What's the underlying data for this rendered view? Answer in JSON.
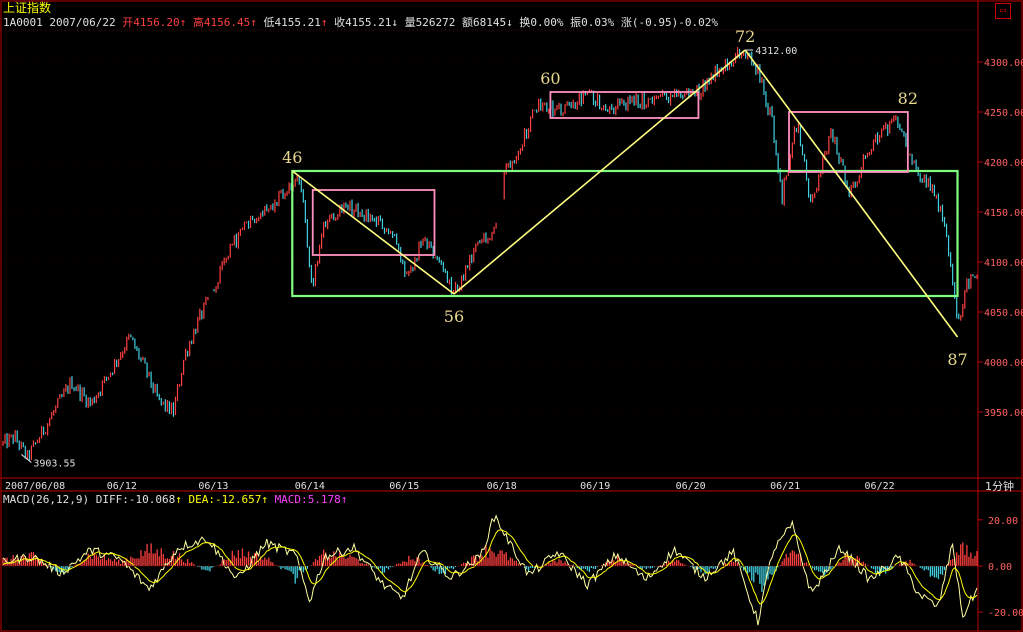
{
  "header": {
    "title": "上证指数",
    "code": "1A0001",
    "date": "2007/06/22",
    "open_label": "开",
    "open": "4156.20",
    "high_label": "高",
    "high": "4156.45",
    "low_label": "低",
    "low": "4155.21",
    "close_label": "收",
    "close": "4155.21",
    "volume_label": "量",
    "volume": "526272",
    "amount_label": "额",
    "amount": "68145",
    "turnover_label": "换",
    "turnover": "0.00%",
    "amplitude_label": "振",
    "amplitude": "0.03%",
    "change_label": "涨",
    "change": "(-0.95)-0.02%",
    "up_arrow": "↑",
    "down_arrow": "↓"
  },
  "period_label": "1分钟",
  "macd_header": {
    "name": "MACD(26,12,9)",
    "diff_label": "DIFF:",
    "diff": "-10.068",
    "dea_label": "DEA:",
    "dea": "-12.657",
    "macd_label": "MACD:",
    "macd": "5.178"
  },
  "colors": {
    "background": "#000000",
    "frame": "#c00000",
    "up": "#ff4040",
    "down": "#40d0e0",
    "label_white": "#e0e0e0",
    "wave_label": "#e8d890",
    "trend_line": "#ffff80",
    "green_box": "#80ff80",
    "pink_box": "#ff90c0",
    "diff_line": "#ffffa0",
    "dea_line": "#ffff00",
    "macd_label": "#ff40ff",
    "axis_text": "#ff6060"
  },
  "chart_data": [
    {
      "type": "candlestick",
      "title": "上证指数 1分钟",
      "x_date_labels": [
        "2007/06/08",
        "06/12",
        "06/13",
        "06/14",
        "06/15",
        "06/18",
        "06/19",
        "06/20",
        "06/21",
        "06/22"
      ],
      "y_ticks": [
        3950,
        4000,
        4050,
        4100,
        4150,
        4200,
        4250,
        4300
      ],
      "ylim": [
        3885,
        4328
      ],
      "annotations": [
        {
          "text": "3903.55",
          "kind": "low_marker",
          "x": 0.025,
          "y": 3903.55
        },
        {
          "text": "4312.00",
          "kind": "high_marker",
          "x": 0.762,
          "y": 4312.0
        },
        {
          "text": "46",
          "kind": "wave_point",
          "x": 0.297,
          "y": 4191
        },
        {
          "text": "56",
          "kind": "wave_point",
          "x": 0.463,
          "y": 4068
        },
        {
          "text": "60",
          "kind": "wave_point",
          "x": 0.562,
          "y": 4270
        },
        {
          "text": "72",
          "kind": "wave_point",
          "x": 0.762,
          "y": 4312
        },
        {
          "text": "82",
          "kind": "wave_point",
          "x": 0.929,
          "y": 4250
        },
        {
          "text": "87",
          "kind": "wave_point",
          "x": 0.98,
          "y": 4025
        }
      ],
      "trend_lines": [
        {
          "from": [
            0.297,
            4191
          ],
          "to": [
            0.463,
            4068
          ]
        },
        {
          "from": [
            0.463,
            4068
          ],
          "to": [
            0.762,
            4312
          ]
        },
        {
          "from": [
            0.762,
            4312
          ],
          "to": [
            0.98,
            4025
          ]
        }
      ],
      "boxes": [
        {
          "color": "green",
          "x0": 0.297,
          "x1": 0.98,
          "y0": 4066,
          "y1": 4191
        },
        {
          "color": "pink",
          "x0": 0.318,
          "x1": 0.443,
          "y0": 4107,
          "y1": 4172
        },
        {
          "color": "pink",
          "x0": 0.562,
          "x1": 0.714,
          "y0": 4244,
          "y1": 4270
        },
        {
          "color": "pink",
          "x0": 0.807,
          "x1": 0.929,
          "y0": 4190,
          "y1": 4250
        }
      ],
      "series_keypoints": [
        [
          0.0,
          3918
        ],
        [
          0.012,
          3925
        ],
        [
          0.025,
          3904
        ],
        [
          0.045,
          3938
        ],
        [
          0.07,
          3980
        ],
        [
          0.09,
          3958
        ],
        [
          0.11,
          3990
        ],
        [
          0.13,
          4025
        ],
        [
          0.145,
          3995
        ],
        [
          0.16,
          3960
        ],
        [
          0.175,
          3950
        ],
        [
          0.186,
          4005
        ],
        [
          0.2,
          4040
        ],
        [
          0.215,
          4070
        ],
        [
          0.222,
          4085
        ],
        [
          0.235,
          4115
        ],
        [
          0.255,
          4145
        ],
        [
          0.28,
          4160
        ],
        [
          0.297,
          4175
        ],
        [
          0.305,
          4182
        ],
        [
          0.318,
          4075
        ],
        [
          0.33,
          4140
        ],
        [
          0.35,
          4158
        ],
        [
          0.375,
          4145
        ],
        [
          0.4,
          4130
        ],
        [
          0.415,
          4080
        ],
        [
          0.43,
          4120
        ],
        [
          0.445,
          4105
        ],
        [
          0.463,
          4068
        ],
        [
          0.475,
          4090
        ],
        [
          0.49,
          4120
        ],
        [
          0.51,
          4140
        ],
        [
          0.515,
          4192
        ],
        [
          0.53,
          4215
        ],
        [
          0.55,
          4260
        ],
        [
          0.575,
          4250
        ],
        [
          0.6,
          4268
        ],
        [
          0.62,
          4255
        ],
        [
          0.65,
          4260
        ],
        [
          0.68,
          4265
        ],
        [
          0.714,
          4270
        ],
        [
          0.735,
          4295
        ],
        [
          0.762,
          4310
        ],
        [
          0.775,
          4290
        ],
        [
          0.79,
          4240
        ],
        [
          0.8,
          4165
        ],
        [
          0.815,
          4240
        ],
        [
          0.83,
          4155
        ],
        [
          0.85,
          4230
        ],
        [
          0.87,
          4170
        ],
        [
          0.895,
          4225
        ],
        [
          0.92,
          4240
        ],
        [
          0.935,
          4195
        ],
        [
          0.95,
          4180
        ],
        [
          0.96,
          4160
        ],
        [
          0.97,
          4120
        ],
        [
          0.98,
          4035
        ],
        [
          0.99,
          4080
        ],
        [
          1.0,
          4090
        ]
      ]
    },
    {
      "type": "bar",
      "title": "MACD(26,12,9)",
      "series": [
        {
          "name": "DIFF",
          "last": -10.068
        },
        {
          "name": "DEA",
          "last": -12.657
        },
        {
          "name": "MACD",
          "last": 5.178
        }
      ],
      "y_ticks": [
        20.0,
        0.0,
        -20.0
      ],
      "y_tick_labels": [
        "20.00",
        "0.00",
        "-20.00"
      ],
      "ylim": [
        -26,
        26
      ],
      "histogram_envelope": [
        [
          0.0,
          3
        ],
        [
          0.03,
          5
        ],
        [
          0.06,
          -4
        ],
        [
          0.09,
          6
        ],
        [
          0.12,
          2
        ],
        [
          0.15,
          8
        ],
        [
          0.18,
          5
        ],
        [
          0.21,
          -3
        ],
        [
          0.24,
          7
        ],
        [
          0.27,
          4
        ],
        [
          0.3,
          -6
        ],
        [
          0.33,
          6
        ],
        [
          0.36,
          4
        ],
        [
          0.39,
          -3
        ],
        [
          0.42,
          5
        ],
        [
          0.45,
          -4
        ],
        [
          0.48,
          3
        ],
        [
          0.5,
          9
        ],
        [
          0.52,
          4
        ],
        [
          0.54,
          -2
        ],
        [
          0.57,
          3
        ],
        [
          0.6,
          -3
        ],
        [
          0.63,
          4
        ],
        [
          0.66,
          -2
        ],
        [
          0.69,
          3
        ],
        [
          0.72,
          -4
        ],
        [
          0.75,
          3
        ],
        [
          0.78,
          -10
        ],
        [
          0.81,
          8
        ],
        [
          0.84,
          -5
        ],
        [
          0.87,
          6
        ],
        [
          0.9,
          -4
        ],
        [
          0.93,
          3
        ],
        [
          0.96,
          -7
        ],
        [
          0.98,
          9
        ],
        [
          1.0,
          5
        ]
      ],
      "diff_keypoints": [
        [
          0.0,
          2
        ],
        [
          0.03,
          4
        ],
        [
          0.06,
          -3
        ],
        [
          0.09,
          7
        ],
        [
          0.12,
          3
        ],
        [
          0.15,
          -10
        ],
        [
          0.18,
          8
        ],
        [
          0.21,
          12
        ],
        [
          0.24,
          -6
        ],
        [
          0.27,
          10
        ],
        [
          0.3,
          5
        ],
        [
          0.315,
          -15
        ],
        [
          0.33,
          4
        ],
        [
          0.36,
          8
        ],
        [
          0.39,
          -8
        ],
        [
          0.41,
          -14
        ],
        [
          0.43,
          6
        ],
        [
          0.46,
          -5
        ],
        [
          0.49,
          4
        ],
        [
          0.505,
          22
        ],
        [
          0.52,
          10
        ],
        [
          0.54,
          -4
        ],
        [
          0.57,
          6
        ],
        [
          0.6,
          -8
        ],
        [
          0.63,
          5
        ],
        [
          0.66,
          -6
        ],
        [
          0.69,
          7
        ],
        [
          0.72,
          -5
        ],
        [
          0.75,
          6
        ],
        [
          0.775,
          -24
        ],
        [
          0.79,
          6
        ],
        [
          0.81,
          18
        ],
        [
          0.83,
          -12
        ],
        [
          0.86,
          8
        ],
        [
          0.89,
          -6
        ],
        [
          0.92,
          4
        ],
        [
          0.94,
          -12
        ],
        [
          0.96,
          -18
        ],
        [
          0.975,
          10
        ],
        [
          0.985,
          -22
        ],
        [
          1.0,
          -10
        ]
      ]
    }
  ]
}
